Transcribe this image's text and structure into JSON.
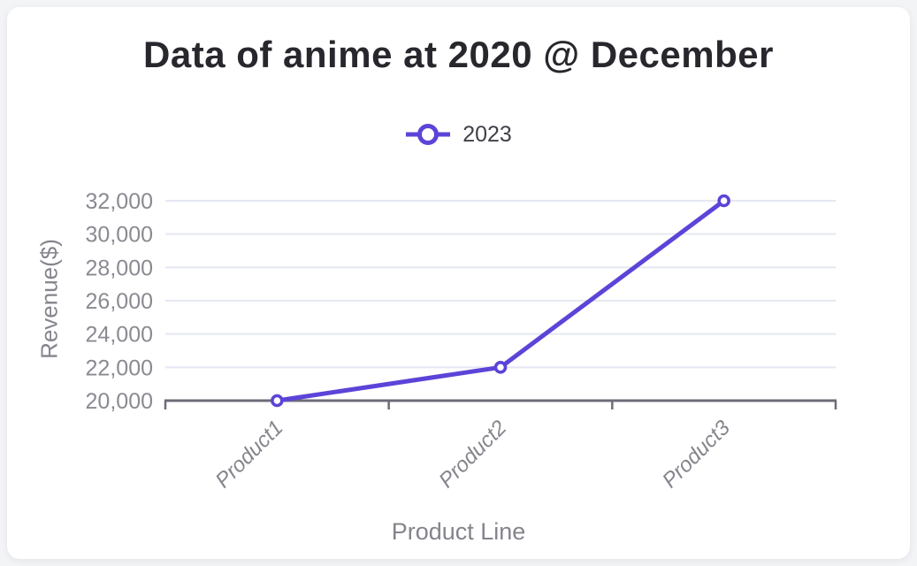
{
  "chart_data": {
    "type": "line",
    "title": "Data of anime at 2020 @ December",
    "xlabel": "Product Line",
    "ylabel": "Revenue($)",
    "categories": [
      "Product1",
      "Product2",
      "Product3"
    ],
    "series": [
      {
        "name": "2023",
        "values": [
          20000,
          22000,
          32000
        ],
        "color": "#5b44d8"
      }
    ],
    "ylim": [
      20000,
      32000
    ],
    "ytick_step": 2000,
    "ytick_labels": [
      "20,000",
      "22,000",
      "24,000",
      "26,000",
      "28,000",
      "30,000",
      "32,000"
    ],
    "grid": true,
    "legend_position": "top",
    "marker_style": "open-circle"
  }
}
